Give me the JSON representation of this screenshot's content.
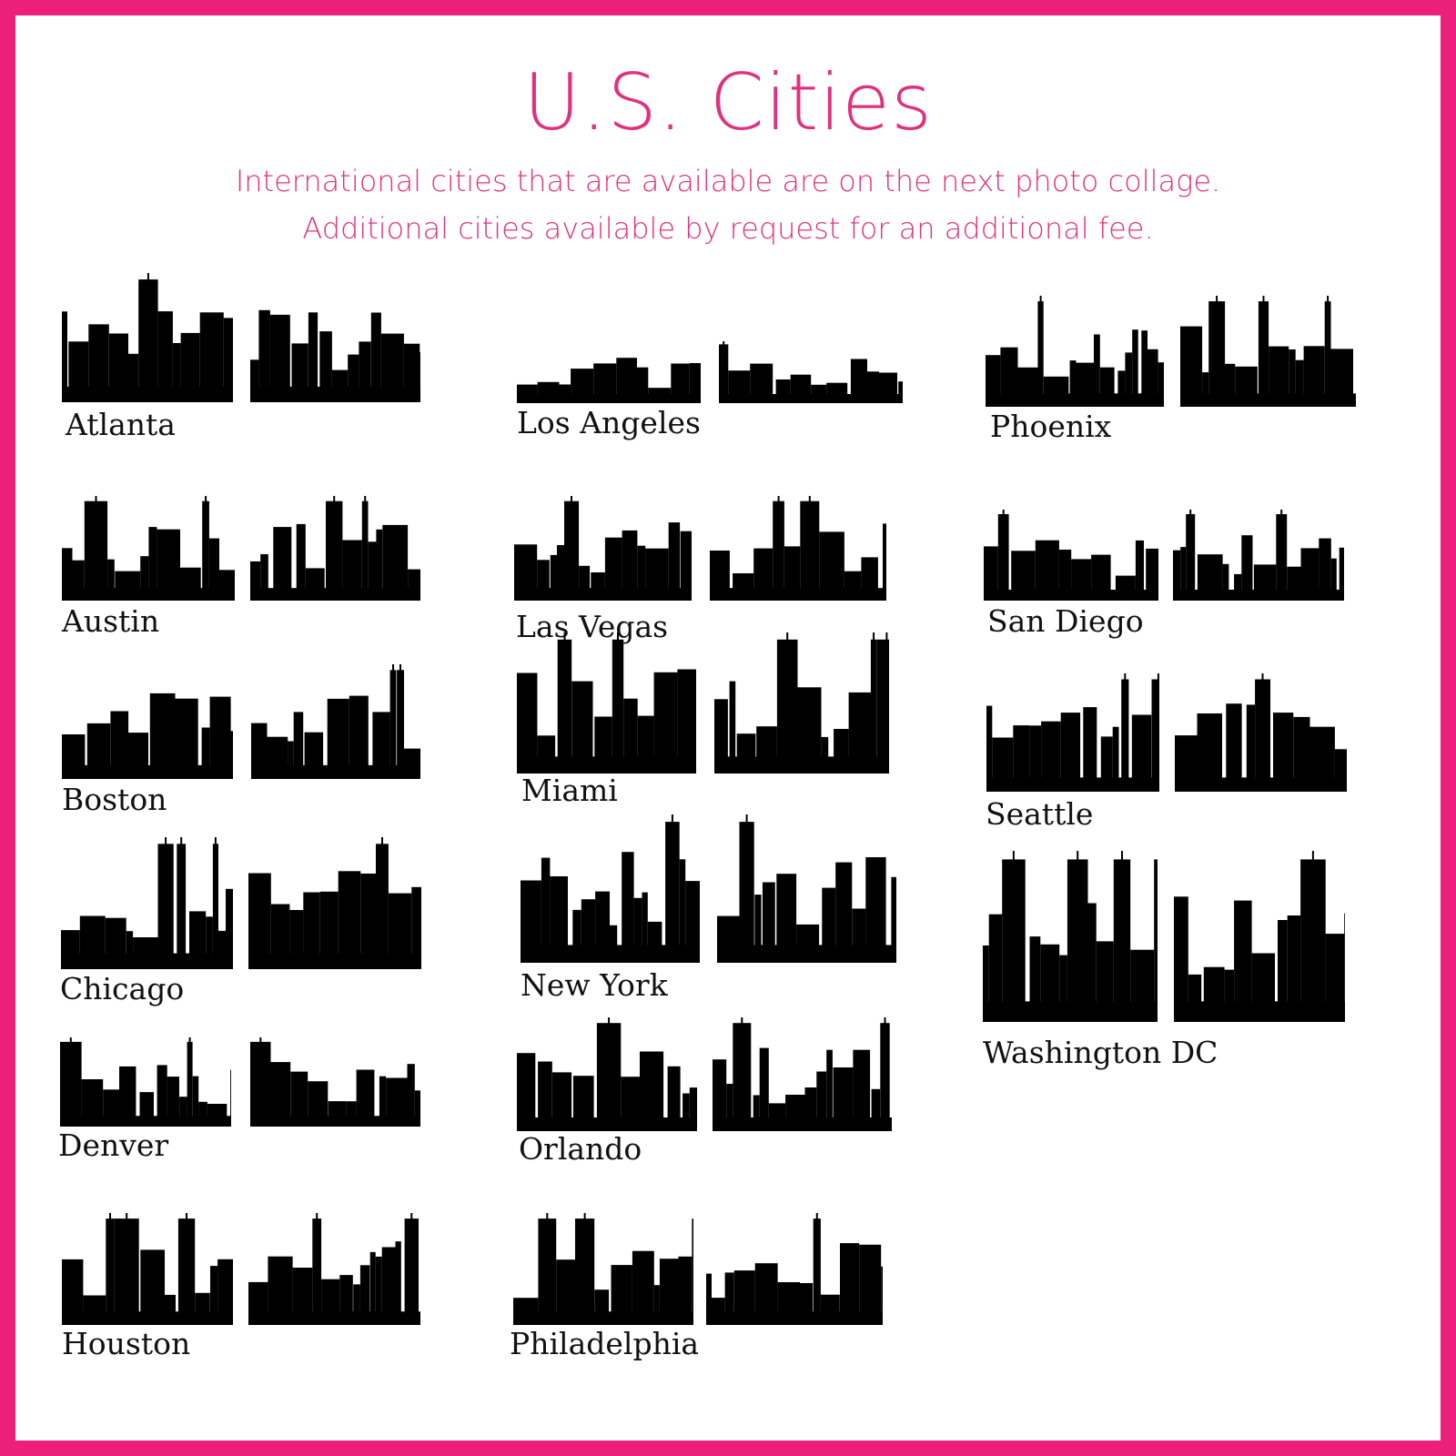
{
  "colors": {
    "border": "#ec1f7c",
    "title": "#e0317f",
    "silhouette": "#000000"
  },
  "header": {
    "title": "U.S. Cities",
    "line1": "International cities that are available are on the next photo collage.",
    "line2": "Additional cities available by request for an additional fee."
  },
  "cities": [
    {
      "name": "Atlanta"
    },
    {
      "name": "Austin"
    },
    {
      "name": "Boston"
    },
    {
      "name": "Chicago"
    },
    {
      "name": "Denver"
    },
    {
      "name": "Houston"
    },
    {
      "name": "Los Angeles"
    },
    {
      "name": "Las Vegas"
    },
    {
      "name": "Miami"
    },
    {
      "name": "New York"
    },
    {
      "name": "Orlando"
    },
    {
      "name": "Philadelphia"
    },
    {
      "name": "Phoenix"
    },
    {
      "name": "San Diego"
    },
    {
      "name": "Seattle"
    },
    {
      "name": "Washington DC"
    }
  ]
}
